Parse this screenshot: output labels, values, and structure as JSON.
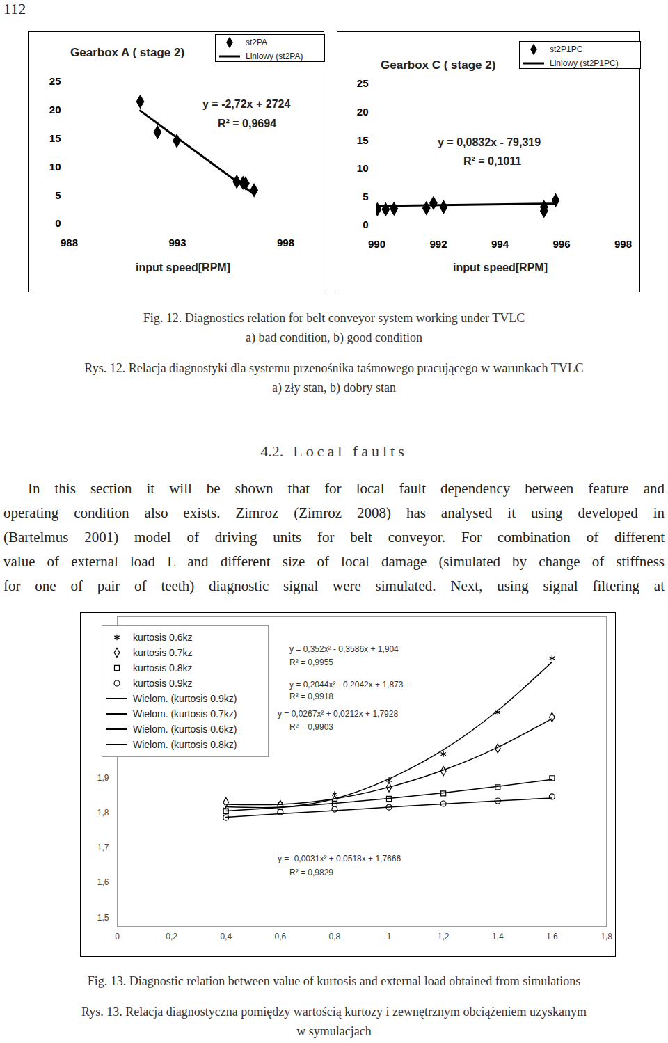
{
  "page_number": "112",
  "chart_data": [
    {
      "type": "scatter",
      "title": "Gearbox A ( stage 2)",
      "xlabel": "input speed[RPM]",
      "xlim": [
        988,
        998
      ],
      "xticks": [
        988,
        993,
        998
      ],
      "ylim": [
        0,
        25
      ],
      "yticks": [
        0,
        5,
        10,
        15,
        20,
        25
      ],
      "grid": false,
      "legend": "top-right",
      "series": [
        {
          "name": "st2PA",
          "type": "scatter",
          "marker": "diamond",
          "color": "#000000",
          "x": [
            991.28,
            992.08,
            992.97,
            995.74,
            996.03,
            996.15,
            996.54
          ],
          "values": [
            21.5,
            16.1,
            14.6,
            7.4,
            7.2,
            7.1,
            5.9
          ]
        },
        {
          "name": "Liniowy (st2PA)",
          "type": "line",
          "color": "#000000",
          "x": [
            991.28,
            996.54
          ],
          "values": [
            19.9,
            5.2
          ]
        }
      ],
      "annotations": [
        "y = -2,72x + 2724",
        "R² = 0,9694"
      ]
    },
    {
      "type": "scatter",
      "title": "Gearbox C ( stage 2)",
      "xlabel": "input speed[RPM]",
      "xlim": [
        990,
        998
      ],
      "xticks": [
        990,
        992,
        994,
        996,
        998
      ],
      "ylim": [
        0,
        25
      ],
      "yticks": [
        0,
        5,
        10,
        15,
        20,
        25
      ],
      "grid": false,
      "legend": "top-right",
      "series": [
        {
          "name": "st2P1PC",
          "type": "scatter",
          "marker": "diamond",
          "color": "#000000",
          "x": [
            990.02,
            990.29,
            990.56,
            991.61,
            991.84,
            992.17,
            995.43,
            995.43,
            995.81
          ],
          "values": [
            2.8,
            2.8,
            2.9,
            3.0,
            3.9,
            3.2,
            2.5,
            3.2,
            4.4
          ]
        },
        {
          "name": "Liniowy (st2P1PC)",
          "type": "line",
          "color": "#000000",
          "x": [
            990.0,
            995.76
          ],
          "values": [
            3.4,
            3.8
          ]
        }
      ],
      "annotations": [
        "y = 0,0832x - 79,319",
        "R² = 0,1011"
      ]
    },
    {
      "type": "line",
      "xlim": [
        0,
        1.8
      ],
      "xticks": [
        0,
        {
          "value": 0.2,
          "label": "0,2"
        },
        {
          "value": 0.4,
          "label": "0,4"
        },
        {
          "value": 0.6,
          "label": "0,6"
        },
        {
          "value": 0.8,
          "label": "0,8"
        },
        1,
        {
          "value": 1.2,
          "label": "1,2"
        },
        {
          "value": 1.4,
          "label": "1,4"
        },
        {
          "value": 1.6,
          "label": "1,6"
        },
        {
          "value": 1.8,
          "label": "1,8"
        }
      ],
      "ylim": [
        1.475,
        2.36
      ],
      "yticks": [
        {
          "value": 1.5,
          "label": "1,5"
        },
        {
          "value": 1.6,
          "label": "1,6"
        },
        {
          "value": 1.7,
          "label": "1,7"
        },
        {
          "value": 1.8,
          "label": "1,8"
        },
        {
          "value": 1.9,
          "label": "1,9"
        }
      ],
      "grid": false,
      "legend": "top-left",
      "x": [
        0.4,
        0.6,
        0.8,
        1.0,
        1.2,
        1.4,
        1.6
      ],
      "series": [
        {
          "name": "kurtosis 0.6kz",
          "type": "scatter",
          "marker": "asterisk",
          "color": "#000000",
          "values": [
            1.81,
            1.826,
            1.853,
            1.893,
            1.968,
            2.087,
            2.242
          ]
        },
        {
          "name": "kurtosis 0.7kz",
          "type": "scatter",
          "marker": "diamond",
          "color": "#000000",
          "values": [
            1.83,
            1.822,
            1.836,
            1.873,
            1.919,
            1.984,
            2.073
          ]
        },
        {
          "name": "kurtosis 0.8kz",
          "type": "scatter",
          "marker": "square",
          "color": "#000000",
          "values": [
            1.804,
            1.816,
            1.826,
            1.84,
            1.855,
            1.873,
            1.899
          ]
        },
        {
          "name": "kurtosis 0.9kz",
          "type": "scatter",
          "marker": "circle",
          "color": "#000000",
          "values": [
            1.786,
            1.802,
            1.81,
            1.816,
            1.826,
            1.834,
            1.846
          ]
        },
        {
          "name": "Wielom. (kurtosis 0.9kz)",
          "type": "line",
          "color": "#000000",
          "values": [
            1.787,
            1.797,
            1.806,
            1.816,
            1.825,
            1.834,
            1.842
          ]
        },
        {
          "name": "Wielom. (kurtosis 0.7kz)",
          "type": "line",
          "color": "#000000",
          "values": [
            1.824,
            1.824,
            1.84,
            1.873,
            1.922,
            1.987,
            2.069
          ]
        },
        {
          "name": "Wielom. (kurtosis 0.6kz)",
          "type": "line",
          "color": "#000000",
          "values": [
            1.817,
            1.816,
            1.84,
            1.897,
            1.98,
            2.092,
            2.231
          ]
        },
        {
          "name": "Wielom. (kurtosis 0.8kz)",
          "type": "line",
          "color": "#000000",
          "values": [
            1.805,
            1.815,
            1.827,
            1.841,
            1.857,
            1.875,
            1.895
          ]
        }
      ],
      "annotations": [
        "y = 0,352x² - 0,3586x + 1,904",
        "R² = 0,9955",
        "y = 0,2044x² - 0,2042x + 1,873",
        "R² = 0,9918",
        "y = 0,0267x² + 0,0212x + 1,7928",
        "R² = 0,9903",
        "y = -0,0031x² + 0,0518x + 1,7666",
        "R² = 0,9829"
      ]
    }
  ],
  "figure_12": {
    "caption_en": [
      "Fig. 12. Diagnostics relation for belt conveyor system working under TVLC",
      "a) bad condition, b) good condition"
    ],
    "caption_pl": [
      "Rys. 12. Relacja diagnostyki dla systemu przenośnika taśmowego pracującego w warunkach TVLC",
      "a) zły stan, b) dobry stan"
    ]
  },
  "section": {
    "number": "4.2.",
    "title": "Local faults"
  },
  "paragraph": [
    "In this section it will be shown that for local fault dependency between feature and",
    "operating condition also exists. Zimroz (Zimroz 2008) has analysed it using developed in",
    "(Bartelmus 2001) model of driving units for belt conveyor. For combination of different",
    "value of external load L and different size of local damage (simulated by change of stiffness",
    "for one of pair of teeth) diagnostic signal were simulated. Next, using signal filtering at"
  ],
  "figure_13": {
    "caption_en": [
      "Fig. 13. Diagnostic relation between value of kurtosis and external load obtained from simulations"
    ],
    "caption_pl": [
      "Rys. 13. Relacja diagnostyczna pomiędzy wartością kurtozy i zewnętrznym obciążeniem uzyskanym",
      "w symulacjach"
    ]
  }
}
